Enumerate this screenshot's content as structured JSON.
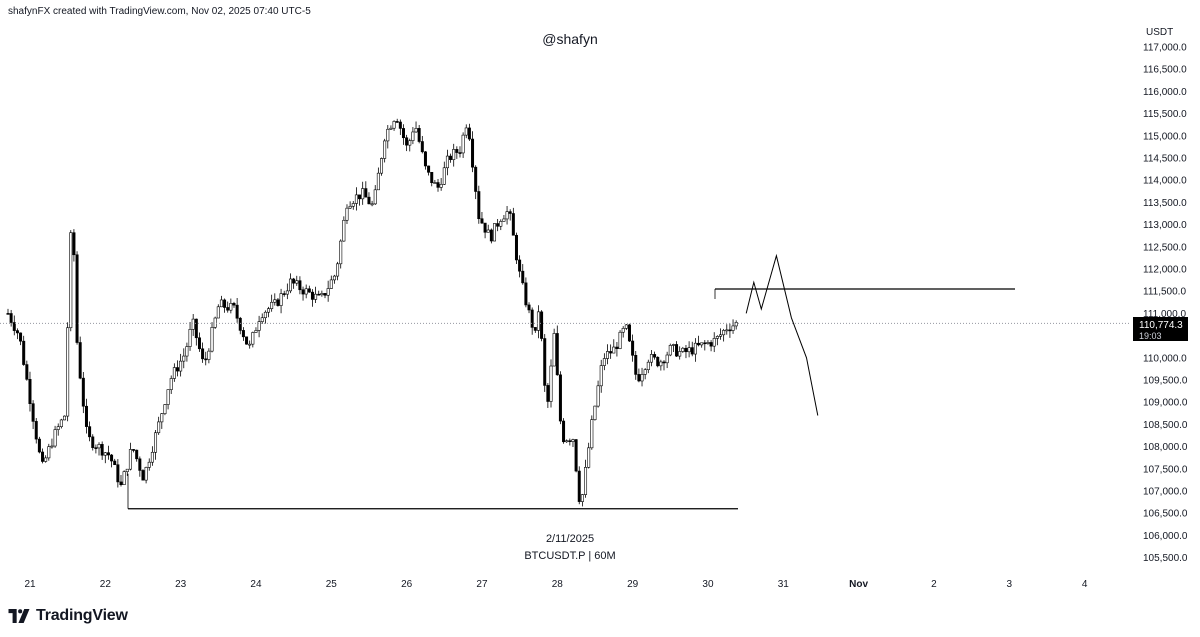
{
  "header_text": "shafynFX created with TradingView.com, Nov 02, 2025 07:40 UTC-5",
  "watermark": "@shafyn",
  "date_stamp": "2/11/2025",
  "symbol_stamp": "BTCUSDT.P | 60M",
  "logo_text": "TradingView",
  "price_label": {
    "value": "110,774.3",
    "countdown": "19:03"
  },
  "colors": {
    "text": "#131722",
    "candle": "#000000",
    "label_bg": "#000000",
    "grid_dotted": "#9598a1"
  },
  "chart_data": {
    "type": "candlestick",
    "title": "",
    "ylabel": "USDT",
    "y_ticks": [
      "105,500.0",
      "106,000.0",
      "106,500.0",
      "107,000.0",
      "107,500.0",
      "108,000.0",
      "108,500.0",
      "109,000.0",
      "109,500.0",
      "110,000.0",
      "110,500.0",
      "111,000.0",
      "111,500.0",
      "112,000.0",
      "112,500.0",
      "113,000.0",
      "113,500.0",
      "114,000.0",
      "114,500.0",
      "115,000.0",
      "115,500.0",
      "116,000.0",
      "116,500.0",
      "117,000.0"
    ],
    "x_ticks": [
      "21",
      "22",
      "23",
      "24",
      "25",
      "26",
      "27",
      "28",
      "29",
      "30",
      "31",
      "Nov",
      "2",
      "3",
      "4"
    ],
    "ylim": [
      105300,
      117300
    ],
    "current_price": 110774.3,
    "horizontal_levels": [
      {
        "price": 106600,
        "from": "Oct 22",
        "to": "Oct 30"
      },
      {
        "price": 111550,
        "from": "Oct 30",
        "to": "Nov 3"
      }
    ],
    "price_path": [
      [
        0.0,
        111000
      ],
      [
        0.15,
        110500
      ],
      [
        0.35,
        108500
      ],
      [
        0.45,
        107500
      ],
      [
        0.6,
        108200
      ],
      [
        0.75,
        108700
      ],
      [
        0.85,
        113500
      ],
      [
        0.92,
        110200
      ],
      [
        1.05,
        108200
      ],
      [
        1.2,
        108000
      ],
      [
        1.35,
        107800
      ],
      [
        1.5,
        107100
      ],
      [
        1.65,
        108000
      ],
      [
        1.8,
        107300
      ],
      [
        2.0,
        108500
      ],
      [
        2.15,
        109500
      ],
      [
        2.35,
        110100
      ],
      [
        2.45,
        110800
      ],
      [
        2.6,
        109800
      ],
      [
        2.8,
        111200
      ],
      [
        3.0,
        111100
      ],
      [
        3.2,
        110200
      ],
      [
        3.35,
        111000
      ],
      [
        3.55,
        111200
      ],
      [
        3.75,
        111700
      ],
      [
        3.95,
        111500
      ],
      [
        4.15,
        111300
      ],
      [
        4.35,
        111900
      ],
      [
        4.5,
        113500
      ],
      [
        4.7,
        113700
      ],
      [
        4.85,
        113400
      ],
      [
        5.0,
        115000
      ],
      [
        5.15,
        115500
      ],
      [
        5.3,
        114700
      ],
      [
        5.4,
        115300
      ],
      [
        5.55,
        114200
      ],
      [
        5.7,
        113800
      ],
      [
        5.85,
        114500
      ],
      [
        6.0,
        114700
      ],
      [
        6.1,
        115400
      ],
      [
        6.25,
        113200
      ],
      [
        6.4,
        112700
      ],
      [
        6.55,
        113200
      ],
      [
        6.65,
        113300
      ],
      [
        6.8,
        111800
      ],
      [
        6.9,
        111100
      ],
      [
        7.0,
        110500
      ],
      [
        7.05,
        111200
      ],
      [
        7.15,
        108700
      ],
      [
        7.25,
        110500
      ],
      [
        7.35,
        108200
      ],
      [
        7.5,
        108200
      ],
      [
        7.6,
        106600
      ],
      [
        7.75,
        108500
      ],
      [
        7.9,
        110000
      ],
      [
        8.05,
        110200
      ],
      [
        8.2,
        110700
      ],
      [
        8.35,
        109500
      ],
      [
        8.5,
        110000
      ],
      [
        8.65,
        109900
      ],
      [
        8.8,
        110200
      ],
      [
        8.95,
        110100
      ],
      [
        9.1,
        110200
      ],
      [
        9.25,
        110300
      ],
      [
        9.4,
        110400
      ],
      [
        9.55,
        110700
      ],
      [
        9.68,
        110774
      ]
    ],
    "projection": [
      [
        9.8,
        111000
      ],
      [
        9.9,
        111700
      ],
      [
        10.0,
        111100
      ],
      [
        10.2,
        112300
      ],
      [
        10.4,
        110900
      ],
      [
        10.6,
        110000
      ],
      [
        10.75,
        108700
      ]
    ]
  }
}
